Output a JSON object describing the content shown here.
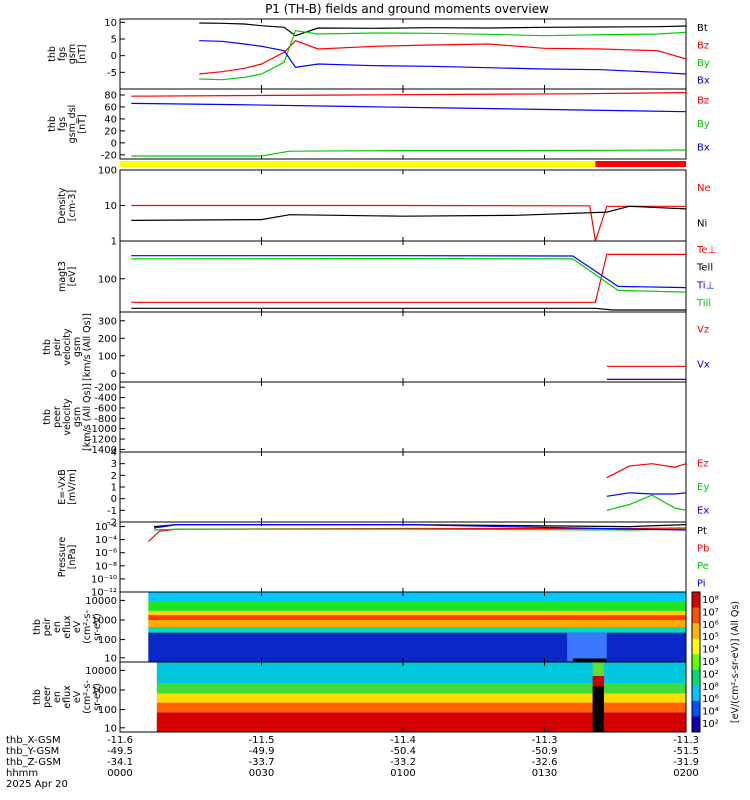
{
  "chart_data": {
    "type": "line",
    "title": "P1 (TH-B) fields and ground moments overview",
    "colors": {
      "black": "#000000",
      "red": "#ff0000",
      "green": "#00cc00",
      "blue": "#0000ff",
      "yellow": "#ffff00"
    },
    "x_ticks": [
      "0000",
      "0030",
      "0100",
      "0130",
      "0200"
    ],
    "panels": [
      {
        "id": "fgs",
        "ylabel": [
          "thb",
          "fgs",
          "gsm",
          "[nT]"
        ],
        "ylim": [
          -10,
          11
        ],
        "ytick_labels": [
          "10",
          "5",
          "0",
          "-5"
        ],
        "yticks": [
          10,
          5,
          0,
          -5
        ],
        "series": [
          {
            "name": "Bt",
            "color": "black",
            "x": [
              0.14,
              0.18,
              0.22,
              0.25,
              0.29,
              0.31,
              0.35,
              0.45,
              0.55,
              0.65,
              0.75,
              0.85,
              0.95,
              1.0
            ],
            "y": [
              9.8,
              9.7,
              9.5,
              9.0,
              8.5,
              6.0,
              8.3,
              8.2,
              8.4,
              8.3,
              8.5,
              8.6,
              8.7,
              8.9
            ]
          },
          {
            "name": "Bz",
            "color": "red",
            "x": [
              0.14,
              0.18,
              0.22,
              0.25,
              0.29,
              0.31,
              0.35,
              0.45,
              0.55,
              0.65,
              0.75,
              0.85,
              0.95,
              1.0
            ],
            "y": [
              -5.5,
              -4.8,
              -3.8,
              -2.5,
              1.0,
              4.5,
              2.0,
              2.8,
              3.2,
              3.5,
              2.2,
              2.0,
              1.5,
              -1.0
            ]
          },
          {
            "name": "By",
            "color": "green",
            "x": [
              0.14,
              0.18,
              0.22,
              0.25,
              0.29,
              0.31,
              0.35,
              0.45,
              0.55,
              0.65,
              0.75,
              0.85,
              0.95,
              1.0
            ],
            "y": [
              -7.0,
              -7.2,
              -6.5,
              -5.5,
              -2.0,
              7.5,
              6.5,
              6.8,
              6.7,
              6.4,
              6.0,
              6.3,
              6.5,
              7.0
            ]
          },
          {
            "name": "Bx",
            "color": "blue",
            "x": [
              0.14,
              0.18,
              0.22,
              0.25,
              0.29,
              0.31,
              0.35,
              0.45,
              0.55,
              0.65,
              0.75,
              0.85,
              0.95,
              1.0
            ],
            "y": [
              4.5,
              4.3,
              3.5,
              2.8,
              1.5,
              -3.5,
              -2.5,
              -3.0,
              -3.2,
              -3.6,
              -4.0,
              -4.2,
              -5.0,
              -5.5
            ]
          }
        ]
      },
      {
        "id": "fgs-dsl",
        "ylabel": [
          "thb",
          "fgs",
          "gsm_dsl",
          "[nT]"
        ],
        "ylim": [
          -27,
          90
        ],
        "ytick_labels": [
          "80",
          "60",
          "40",
          "20",
          "0",
          "-20"
        ],
        "yticks": [
          80,
          60,
          40,
          20,
          0,
          -20
        ],
        "series": [
          {
            "name": "Bz",
            "color": "red",
            "x": [
              0.02,
              0.2,
              0.4,
              0.6,
              0.8,
              1.0
            ],
            "y": [
              78,
              79,
              80,
              81,
              82,
              84
            ]
          },
          {
            "name": "By",
            "color": "green",
            "x": [
              0.02,
              0.25,
              0.3,
              0.5,
              0.7,
              1.0
            ],
            "y": [
              -22,
              -22,
              -14,
              -13,
              -13,
              -12
            ]
          },
          {
            "name": "Bx",
            "color": "blue",
            "x": [
              0.02,
              0.2,
              0.4,
              0.6,
              0.8,
              1.0
            ],
            "y": [
              66,
              64,
              61,
              58,
              55,
              52
            ]
          }
        ]
      },
      {
        "id": "density",
        "ylabel": [
          "Density",
          "[cm-3]"
        ],
        "scale": "log",
        "ylim": [
          1,
          100
        ],
        "ytick_labels": [
          "100",
          "10",
          "1"
        ],
        "yticks": [
          100,
          10,
          1
        ],
        "series": [
          {
            "name": "Ne",
            "color": "red",
            "x": [
              0.02,
              0.5,
              0.83,
              0.84,
              0.86,
              1.0
            ],
            "y": [
              10,
              10,
              9.8,
              1.0,
              9.5,
              9.5
            ]
          },
          {
            "name": "Ni",
            "color": "black",
            "x": [
              0.02,
              0.25,
              0.3,
              0.5,
              0.7,
              0.86,
              0.9,
              1.0
            ],
            "y": [
              3.8,
              4.0,
              5.5,
              5.0,
              5.3,
              6.5,
              9.5,
              8.0
            ]
          }
        ]
      },
      {
        "id": "temperature",
        "ylabel": [
          "magt3",
          "[eV]"
        ],
        "scale": "log",
        "ylim": [
          5,
          3000
        ],
        "ytick_labels": [
          "100"
        ],
        "yticks": [
          100
        ],
        "series": [
          {
            "name": "Te⊥",
            "color": "red",
            "x": [
              0.02,
              0.5,
              0.84,
              0.86,
              1.0
            ],
            "y": [
              12,
              12,
              12,
              900,
              900
            ]
          },
          {
            "name": "Tell",
            "color": "black",
            "x": [
              0.02,
              0.5,
              0.84,
              0.87,
              1.0
            ],
            "y": [
              7,
              7,
              7,
              6,
              6
            ]
          },
          {
            "name": "Ti⊥",
            "color": "blue",
            "x": [
              0.02,
              0.5,
              0.8,
              0.88,
              1.0
            ],
            "y": [
              800,
              800,
              780,
              50,
              45
            ]
          },
          {
            "name": "Till",
            "color": "green",
            "x": [
              0.02,
              0.5,
              0.8,
              0.88,
              1.0
            ],
            "y": [
              600,
              620,
              600,
              35,
              30
            ]
          }
        ]
      },
      {
        "id": "peir-velocity",
        "ylabel": [
          "thb",
          "peir",
          "velocity",
          "gsm",
          "[km/s (All Qs)]"
        ],
        "ylim": [
          -50,
          350
        ],
        "ytick_labels": [
          "300",
          "200",
          "100",
          "0"
        ],
        "yticks": [
          300,
          200,
          100,
          0
        ],
        "series": [
          {
            "name": "Vz",
            "color": "red",
            "x": [
              0.86,
              1.0
            ],
            "y": [
              40,
              40
            ]
          },
          {
            "name": "Vx",
            "color": "blue",
            "x": [
              0.86,
              1.0
            ],
            "y": [
              -35,
              -35
            ]
          }
        ]
      },
      {
        "id": "peer-velocity",
        "ylabel": [
          "thb",
          "peer",
          "velocity",
          "gsm",
          "[km/s (All Qs)]"
        ],
        "ylim": [
          -1450,
          -100
        ],
        "ytick_labels": [
          "-200",
          "-400",
          "-600",
          "-800",
          "-1000",
          "-1200",
          "-1400"
        ],
        "yticks": [
          -200,
          -400,
          -600,
          -800,
          -1000,
          -1200,
          -1400
        ],
        "series": []
      },
      {
        "id": "efield",
        "ylabel": [
          "E=-VxB",
          "[mV/m]"
        ],
        "ylim": [
          -2,
          4
        ],
        "ytick_labels": [
          "4",
          "3",
          "2",
          "1",
          "0",
          "-1",
          "-2"
        ],
        "yticks": [
          4,
          3,
          2,
          1,
          0,
          -1,
          -2
        ],
        "series": [
          {
            "name": "Ez",
            "color": "red",
            "x": [
              0.86,
              0.9,
              0.94,
              0.98,
              1.0
            ],
            "y": [
              1.8,
              2.8,
              3.0,
              2.7,
              3.0
            ]
          },
          {
            "name": "Ey",
            "color": "green",
            "x": [
              0.86,
              0.9,
              0.94,
              0.98,
              1.0
            ],
            "y": [
              -1.0,
              -0.5,
              0.3,
              -0.8,
              -1.0
            ]
          },
          {
            "name": "Ex",
            "color": "blue",
            "x": [
              0.86,
              0.9,
              0.94,
              0.98,
              1.0
            ],
            "y": [
              0.2,
              0.5,
              0.4,
              0.4,
              0.5
            ]
          }
        ]
      },
      {
        "id": "pressure",
        "ylabel": [
          "Pressure",
          "[nPa]"
        ],
        "scale": "log",
        "ylim": [
          1e-12,
          0.05
        ],
        "ytick_labels": [
          "10⁻²",
          "10⁻⁴",
          "10⁻⁶",
          "10⁻⁸",
          "10⁻¹⁰",
          "10⁻¹²"
        ],
        "yticks": [
          0.01,
          0.0001,
          1e-06,
          1e-08,
          1e-10,
          1e-12
        ],
        "series": [
          {
            "name": "Pt",
            "color": "black",
            "x": [
              0.06,
              0.1,
              0.5,
              0.9,
              1.0
            ],
            "y": [
              0.01,
              0.02,
              0.02,
              0.01,
              0.02
            ]
          },
          {
            "name": "Pb",
            "color": "red",
            "x": [
              0.05,
              0.07,
              0.1,
              0.5,
              0.9,
              1.0
            ],
            "y": [
              5e-05,
              0.002,
              0.004,
              0.005,
              0.005,
              0.006
            ]
          },
          {
            "name": "Pe",
            "color": "green",
            "x": [
              0.06,
              0.1,
              0.5,
              0.9,
              1.0
            ],
            "y": [
              0.003,
              0.004,
              0.004,
              0.003,
              0.004
            ]
          },
          {
            "name": "Pi",
            "color": "blue",
            "x": [
              0.06,
              0.1,
              0.5,
              0.85,
              1.0
            ],
            "y": [
              0.006,
              0.02,
              0.02,
              0.005,
              0.003
            ]
          }
        ]
      },
      {
        "id": "peir-spectrogram",
        "type": "heatmap",
        "ylabel": [
          "thb",
          "peir",
          "en",
          "eflux",
          "eV",
          "(cm²-s-",
          "sr-eV)"
        ],
        "ytick_labels": [
          "10000",
          "1000",
          "100",
          "10"
        ],
        "yticks": [
          10000,
          1000,
          100,
          10
        ]
      },
      {
        "id": "peer-spectrogram",
        "type": "heatmap",
        "ylabel": [
          "thb",
          "peer",
          "en",
          "eflux",
          "eV",
          "(cm²-s-",
          "sr-eV)"
        ],
        "ytick_labels": [
          "10000",
          "1000",
          "100",
          "10"
        ],
        "yticks": [
          10000,
          1000,
          100,
          10
        ]
      }
    ],
    "colorbar": {
      "label": "[eV/(cm²-s-sr-eV)] (All Qs)",
      "tick_labels": [
        "10⁸",
        "10⁷",
        "10⁶",
        "10⁵",
        "10⁴",
        "10³",
        "10²",
        "10⁸",
        "10⁶",
        "10⁴",
        "10²"
      ]
    },
    "ephemeris": {
      "labels": [
        "thb_X-GSM",
        "thb_Y-GSM",
        "thb_Z-GSM",
        "hhmm",
        "2025 Apr 20"
      ],
      "columns": [
        [
          "-11.6",
          "-49.5",
          "-34.1",
          "0000"
        ],
        [
          "-11.5",
          "-49.9",
          "-33.7",
          "0030"
        ],
        [
          "-11.4",
          "-50.4",
          "-33.2",
          "0100"
        ],
        [
          "-11.3",
          "-50.9",
          "-32.6",
          "0130"
        ],
        [
          "-11.3",
          "-51.5",
          "-31.9",
          "0200"
        ]
      ]
    }
  }
}
